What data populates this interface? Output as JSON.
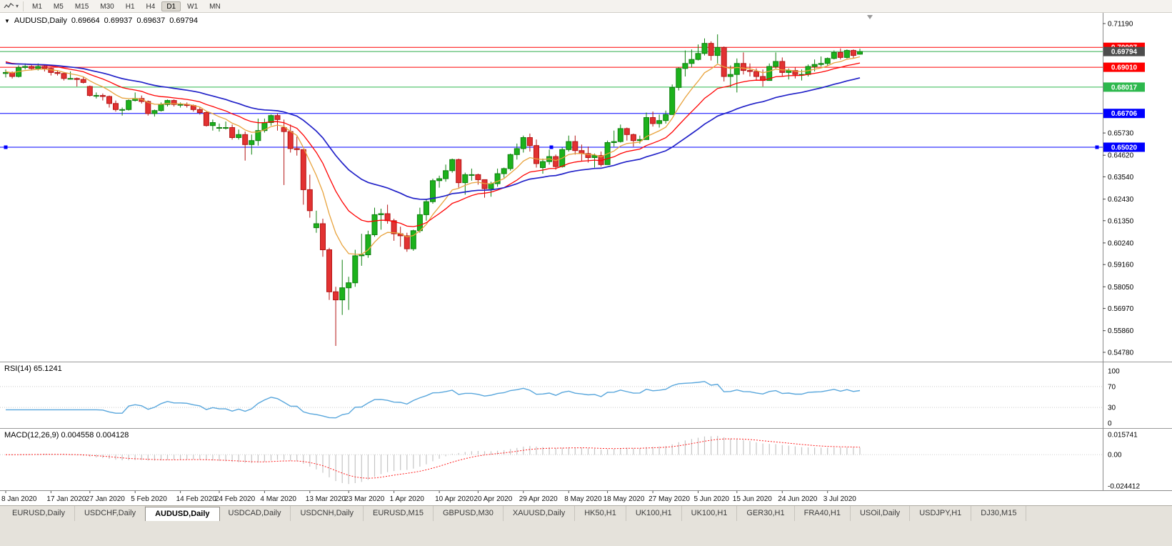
{
  "toolbar": {
    "timeframes": [
      "M1",
      "M5",
      "M15",
      "M30",
      "H1",
      "H4",
      "D1",
      "W1",
      "MN"
    ],
    "active_timeframe": "D1"
  },
  "chart_header": {
    "menu_glyph": "▼",
    "symbol": "AUDUSD,Daily",
    "open": "0.69664",
    "high": "0.69937",
    "low": "0.69637",
    "close": "0.69794"
  },
  "chart_data": {
    "type": "candlestick",
    "symbol": "AUDUSD",
    "timeframe": "Daily",
    "ylim": [
      0.54352,
      0.71725
    ],
    "price_ticks": [
      "0.71190",
      "0.65730",
      "0.64620",
      "0.63540",
      "0.62430",
      "0.61350",
      "0.60240",
      "0.59160",
      "0.58050",
      "0.56970",
      "0.55860",
      "0.54780"
    ],
    "x_ticks": [
      {
        "i": 0,
        "label": "8 Jan 2020"
      },
      {
        "i": 7,
        "label": "17 Jan 2020"
      },
      {
        "i": 13,
        "label": "27 Jan 2020"
      },
      {
        "i": 20,
        "label": "5 Feb 2020"
      },
      {
        "i": 27,
        "label": "14 Feb 2020"
      },
      {
        "i": 33,
        "label": "24 Feb 2020"
      },
      {
        "i": 40,
        "label": "4 Mar 2020"
      },
      {
        "i": 47,
        "label": "13 Mar 2020"
      },
      {
        "i": 53,
        "label": "23 Mar 2020"
      },
      {
        "i": 60,
        "label": "1 Apr 2020"
      },
      {
        "i": 67,
        "label": "10 Apr 2020"
      },
      {
        "i": 73,
        "label": "20 Apr 2020"
      },
      {
        "i": 80,
        "label": "29 Apr 2020"
      },
      {
        "i": 87,
        "label": "8 May 2020"
      },
      {
        "i": 93,
        "label": "18 May 2020"
      },
      {
        "i": 100,
        "label": "27 May 2020"
      },
      {
        "i": 107,
        "label": "5 Jun 2020"
      },
      {
        "i": 113,
        "label": "15 Jun 2020"
      },
      {
        "i": 120,
        "label": "24 Jun 2020"
      },
      {
        "i": 127,
        "label": "3 Jul 2020"
      }
    ],
    "colors": {
      "bull": "#1cb21c",
      "bull_border": "#0e800e",
      "bear": "#e23232",
      "bear_border": "#b41414"
    },
    "ohlc": [
      [
        0.687,
        0.689,
        0.685,
        0.6875
      ],
      [
        0.6875,
        0.688,
        0.6845,
        0.6855
      ],
      [
        0.6855,
        0.691,
        0.685,
        0.69
      ],
      [
        0.69,
        0.692,
        0.689,
        0.6905
      ],
      [
        0.6905,
        0.6915,
        0.6885,
        0.6895
      ],
      [
        0.6895,
        0.692,
        0.6885,
        0.6905
      ],
      [
        0.6905,
        0.691,
        0.688,
        0.6895
      ],
      [
        0.6895,
        0.69,
        0.686,
        0.6875
      ],
      [
        0.6875,
        0.6885,
        0.686,
        0.687
      ],
      [
        0.687,
        0.6875,
        0.6835,
        0.6845
      ],
      [
        0.6845,
        0.688,
        0.684,
        0.6845
      ],
      [
        0.6845,
        0.685,
        0.6805,
        0.684
      ],
      [
        0.684,
        0.6855,
        0.682,
        0.6825
      ],
      [
        0.6805,
        0.681,
        0.6755,
        0.676
      ],
      [
        0.676,
        0.6775,
        0.6745,
        0.676
      ],
      [
        0.676,
        0.677,
        0.6735,
        0.6755
      ],
      [
        0.6755,
        0.676,
        0.67,
        0.672
      ],
      [
        0.672,
        0.6735,
        0.668,
        0.669
      ],
      [
        0.669,
        0.67,
        0.666,
        0.669
      ],
      [
        0.669,
        0.674,
        0.6685,
        0.6735
      ],
      [
        0.6735,
        0.6775,
        0.673,
        0.6745
      ],
      [
        0.6745,
        0.676,
        0.672,
        0.673
      ],
      [
        0.673,
        0.6735,
        0.666,
        0.667
      ],
      [
        0.667,
        0.669,
        0.6655,
        0.6685
      ],
      [
        0.6685,
        0.6725,
        0.668,
        0.6715
      ],
      [
        0.6715,
        0.674,
        0.6705,
        0.6735
      ],
      [
        0.6735,
        0.674,
        0.6705,
        0.6715
      ],
      [
        0.6715,
        0.6725,
        0.67,
        0.6715
      ],
      [
        0.6715,
        0.6725,
        0.67,
        0.671
      ],
      [
        0.671,
        0.6715,
        0.668,
        0.669
      ],
      [
        0.669,
        0.67,
        0.6665,
        0.6675
      ],
      [
        0.6675,
        0.668,
        0.6605,
        0.661
      ],
      [
        0.661,
        0.664,
        0.6585,
        0.6625
      ],
      [
        0.66,
        0.662,
        0.658,
        0.66
      ],
      [
        0.66,
        0.663,
        0.659,
        0.66
      ],
      [
        0.66,
        0.6615,
        0.654,
        0.655
      ],
      [
        0.655,
        0.659,
        0.654,
        0.6565
      ],
      [
        0.6565,
        0.658,
        0.6435,
        0.6515
      ],
      [
        0.6515,
        0.6565,
        0.6465,
        0.6535
      ],
      [
        0.6535,
        0.6645,
        0.651,
        0.6585
      ],
      [
        0.6585,
        0.6645,
        0.6575,
        0.6625
      ],
      [
        0.6625,
        0.6665,
        0.661,
        0.666
      ],
      [
        0.666,
        0.667,
        0.6585,
        0.664
      ],
      [
        0.66,
        0.664,
        0.6313,
        0.658
      ],
      [
        0.658,
        0.6615,
        0.6475,
        0.6495
      ],
      [
        0.6495,
        0.6555,
        0.646,
        0.649
      ],
      [
        0.649,
        0.649,
        0.6215,
        0.629
      ],
      [
        0.629,
        0.6365,
        0.615,
        0.6185
      ],
      [
        0.61,
        0.6185,
        0.6075,
        0.612
      ],
      [
        0.612,
        0.6145,
        0.5955,
        0.599
      ],
      [
        0.599,
        0.6,
        0.574,
        0.578
      ],
      [
        0.578,
        0.5805,
        0.551,
        0.574
      ],
      [
        0.574,
        0.594,
        0.5665,
        0.58
      ],
      [
        0.58,
        0.5855,
        0.569,
        0.5825
      ],
      [
        0.5825,
        0.599,
        0.5805,
        0.596
      ],
      [
        0.596,
        0.607,
        0.591,
        0.5965
      ],
      [
        0.5965,
        0.6085,
        0.595,
        0.6065
      ],
      [
        0.6065,
        0.62,
        0.6055,
        0.6165
      ],
      [
        0.6165,
        0.6195,
        0.609,
        0.617
      ],
      [
        0.617,
        0.6215,
        0.612,
        0.6135
      ],
      [
        0.6135,
        0.6145,
        0.6035,
        0.607
      ],
      [
        0.607,
        0.6105,
        0.6005,
        0.606
      ],
      [
        0.606,
        0.6075,
        0.598,
        0.5995
      ],
      [
        0.5995,
        0.609,
        0.5985,
        0.6085
      ],
      [
        0.6085,
        0.62,
        0.6075,
        0.6165
      ],
      [
        0.6165,
        0.6245,
        0.6135,
        0.623
      ],
      [
        0.623,
        0.6345,
        0.622,
        0.6335
      ],
      [
        0.6335,
        0.636,
        0.63,
        0.6345
      ],
      [
        0.6345,
        0.6415,
        0.633,
        0.6385
      ],
      [
        0.6385,
        0.6445,
        0.6375,
        0.644
      ],
      [
        0.644,
        0.6445,
        0.63,
        0.6325
      ],
      [
        0.6325,
        0.6375,
        0.6265,
        0.6365
      ],
      [
        0.6365,
        0.6395,
        0.6335,
        0.6365
      ],
      [
        0.6365,
        0.637,
        0.6315,
        0.634
      ],
      [
        0.634,
        0.634,
        0.625,
        0.6295
      ],
      [
        0.6295,
        0.633,
        0.6255,
        0.632
      ],
      [
        0.632,
        0.6395,
        0.6305,
        0.637
      ],
      [
        0.637,
        0.64,
        0.635,
        0.6395
      ],
      [
        0.6395,
        0.647,
        0.6385,
        0.6465
      ],
      [
        0.6465,
        0.652,
        0.644,
        0.6495
      ],
      [
        0.6495,
        0.656,
        0.6475,
        0.655
      ],
      [
        0.655,
        0.657,
        0.648,
        0.651
      ],
      [
        0.651,
        0.654,
        0.64,
        0.642
      ],
      [
        0.64,
        0.6445,
        0.637,
        0.643
      ],
      [
        0.643,
        0.649,
        0.6415,
        0.6455
      ],
      [
        0.6455,
        0.6465,
        0.639,
        0.6405
      ],
      [
        0.6405,
        0.65,
        0.64,
        0.649
      ],
      [
        0.649,
        0.656,
        0.648,
        0.653
      ],
      [
        0.653,
        0.656,
        0.6465,
        0.6485
      ],
      [
        0.6485,
        0.6515,
        0.643,
        0.647
      ],
      [
        0.647,
        0.6505,
        0.6425,
        0.645
      ],
      [
        0.645,
        0.647,
        0.64,
        0.646
      ],
      [
        0.646,
        0.648,
        0.6405,
        0.6415
      ],
      [
        0.6415,
        0.6535,
        0.6415,
        0.6525
      ],
      [
        0.6525,
        0.6585,
        0.6505,
        0.653
      ],
      [
        0.653,
        0.6615,
        0.6525,
        0.6595
      ],
      [
        0.6595,
        0.66,
        0.6535,
        0.6565
      ],
      [
        0.6565,
        0.657,
        0.6505,
        0.6535
      ],
      [
        0.6535,
        0.656,
        0.652,
        0.654
      ],
      [
        0.654,
        0.6675,
        0.654,
        0.665
      ],
      [
        0.665,
        0.668,
        0.6605,
        0.662
      ],
      [
        0.662,
        0.6665,
        0.66,
        0.6635
      ],
      [
        0.6635,
        0.6685,
        0.662,
        0.6665
      ],
      [
        0.6665,
        0.6815,
        0.6665,
        0.68
      ],
      [
        0.68,
        0.69,
        0.6785,
        0.6895
      ],
      [
        0.6895,
        0.6985,
        0.6855,
        0.692
      ],
      [
        0.692,
        0.699,
        0.69,
        0.694
      ],
      [
        0.694,
        0.7015,
        0.6935,
        0.697
      ],
      [
        0.697,
        0.7045,
        0.696,
        0.702
      ],
      [
        0.702,
        0.703,
        0.6935,
        0.696
      ],
      [
        0.696,
        0.7065,
        0.692,
        0.7
      ],
      [
        0.7,
        0.7005,
        0.683,
        0.6855
      ],
      [
        0.6855,
        0.691,
        0.68,
        0.6865
      ],
      [
        0.6865,
        0.6945,
        0.6775,
        0.692
      ],
      [
        0.692,
        0.6975,
        0.6865,
        0.6885
      ],
      [
        0.6885,
        0.692,
        0.6855,
        0.688
      ],
      [
        0.688,
        0.6895,
        0.6835,
        0.6855
      ],
      [
        0.6855,
        0.689,
        0.6805,
        0.6835
      ],
      [
        0.6835,
        0.692,
        0.6835,
        0.6905
      ],
      [
        0.6905,
        0.6975,
        0.6895,
        0.693
      ],
      [
        0.693,
        0.695,
        0.6855,
        0.6875
      ],
      [
        0.6875,
        0.6895,
        0.684,
        0.6885
      ],
      [
        0.6885,
        0.69,
        0.6845,
        0.6865
      ],
      [
        0.6865,
        0.689,
        0.6835,
        0.6865
      ],
      [
        0.6865,
        0.6915,
        0.6855,
        0.6905
      ],
      [
        0.6905,
        0.694,
        0.688,
        0.6915
      ],
      [
        0.6915,
        0.6955,
        0.6905,
        0.692
      ],
      [
        0.692,
        0.695,
        0.691,
        0.6945
      ],
      [
        0.6945,
        0.6985,
        0.694,
        0.6975
      ],
      [
        0.6975,
        0.6995,
        0.694,
        0.695
      ],
      [
        0.695,
        0.699,
        0.6945,
        0.6985
      ],
      [
        0.6985,
        0.699,
        0.6945,
        0.696
      ],
      [
        0.69664,
        0.69937,
        0.69637,
        0.69794
      ]
    ],
    "moving_averages": [
      {
        "name": "ma-fast-line",
        "period": 8,
        "seed": 0.688,
        "color": "#e8a33d",
        "width": 1.3
      },
      {
        "name": "ma-mid-line",
        "period": 17,
        "seed": 0.6935,
        "color": "#ff0000",
        "width": 1.3
      },
      {
        "name": "ma-slow-line",
        "period": 34,
        "seed": 0.6925,
        "color": "#2121c8",
        "width": 1.7
      }
    ],
    "horizontal_lines": [
      {
        "name": "resistance-line-1",
        "value": 0.70007,
        "text": "0.70007",
        "color": "#ff0000",
        "badge": "#ff0000"
      },
      {
        "name": "resistance-line-2",
        "value": 0.6901,
        "text": "0.69010",
        "color": "#ff0000",
        "badge": "#ff0000"
      },
      {
        "name": "support-line-green",
        "value": 0.68017,
        "text": "0.68017",
        "color": "#2db84d",
        "badge": "#2db84d"
      },
      {
        "name": "support-line-blue-1",
        "value": 0.66706,
        "text": "0.66706",
        "color": "#0000ff",
        "badge": "#0000ff"
      },
      {
        "name": "support-line-blue-2",
        "value": 0.6502,
        "text": "0.65020",
        "color": "#0000ff",
        "badge": "#0000ff",
        "selected": true
      },
      {
        "name": "bid-price-line",
        "value": 0.69794,
        "text": "0.69794",
        "color": "#2fae4a",
        "badge": "#4d4d4d",
        "is_price": true
      }
    ],
    "rsi": {
      "name": "RSI(14)",
      "value": "65.1241",
      "period": 14,
      "color": "#58a6dc",
      "levels": [
        {
          "text": "100",
          "value": 100
        },
        {
          "text": "70",
          "value": 70
        },
        {
          "text": "30",
          "value": 30
        },
        {
          "text": "0",
          "value": 0
        }
      ]
    },
    "macd": {
      "name": "MACD(12,26,9)",
      "value_main": "0.004558",
      "value_signal": "0.004128",
      "fast": 12,
      "slow": 26,
      "signal": 9,
      "hist_color": "#c4c4c4",
      "signal_color": "#ff2020",
      "ylim": [
        -0.024412,
        0.015741
      ],
      "scale": [
        {
          "text": "0.015741",
          "value": 0.015741
        },
        {
          "text": "0.00",
          "value": 0
        },
        {
          "text": "-0.024412",
          "value": -0.024412
        }
      ]
    }
  },
  "tabs": {
    "items": [
      "EURUSD,Daily",
      "USDCHF,Daily",
      "AUDUSD,Daily",
      "USDCAD,Daily",
      "USDCNH,Daily",
      "EURUSD,M15",
      "GBPUSD,M30",
      "XAUUSD,Daily",
      "HK50,H1",
      "UK100,H1",
      "UK100,H1",
      "GER30,H1",
      "FRA40,H1",
      "USOil,Daily",
      "USDJPY,H1",
      "DJ30,M15"
    ],
    "active_index": 2
  }
}
